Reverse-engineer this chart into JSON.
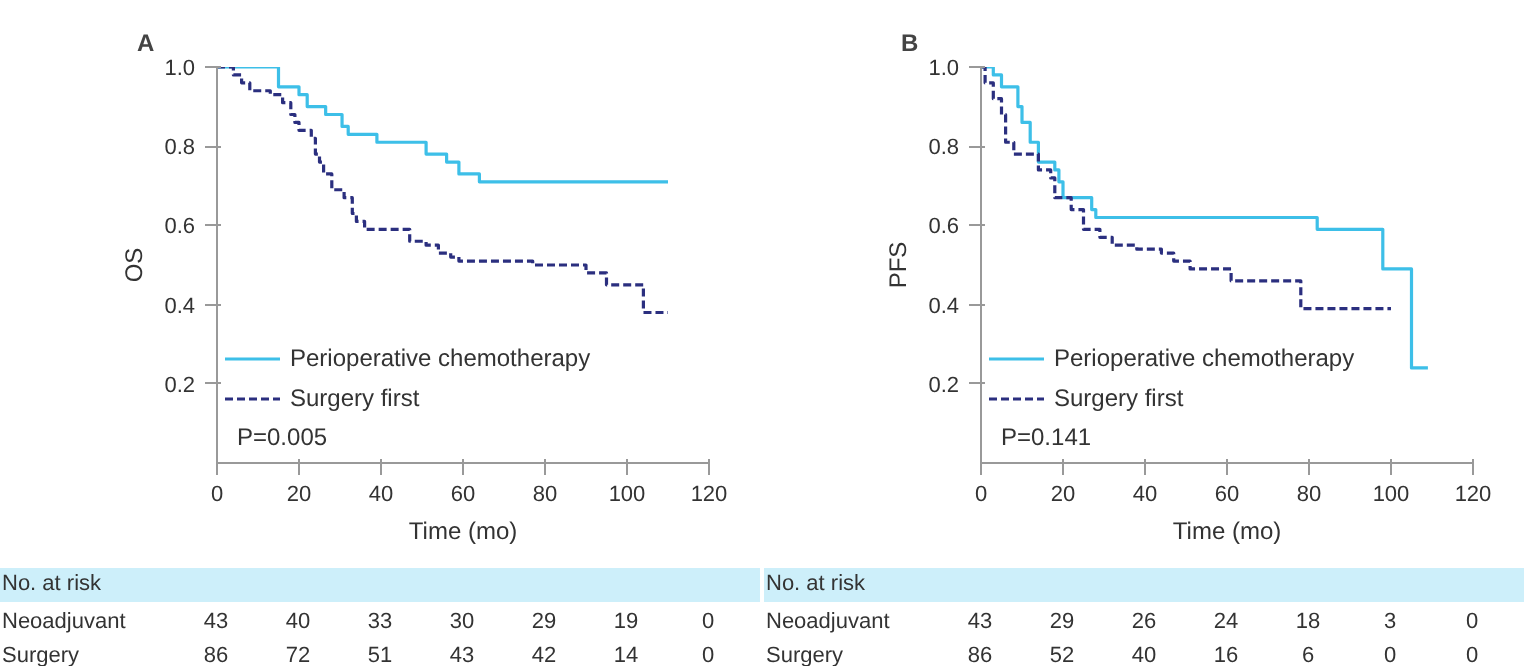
{
  "chart_data": [
    {
      "type": "step",
      "title": "A",
      "xlabel": "Time (mo)",
      "ylabel": "OS",
      "xlim": [
        0,
        120
      ],
      "ylim": [
        0,
        1.0
      ],
      "xticks": [
        0,
        20,
        40,
        60,
        80,
        100,
        120
      ],
      "yticks": [
        0.2,
        0.4,
        0.6,
        0.8,
        {
          "value": 1.0,
          "label": "1.0"
        }
      ],
      "grid": false,
      "legend": "bottom left",
      "series": [
        {
          "name": "Perioperative chemotherapy",
          "color": "#3dbfe8",
          "line_style": "solid",
          "x": [
            0,
            15,
            20,
            22,
            26.5,
            30.5,
            32,
            39,
            51,
            56,
            59,
            64,
            110
          ],
          "values": [
            1.0,
            0.95,
            0.93,
            0.9,
            0.88,
            0.85,
            0.83,
            0.81,
            0.78,
            0.76,
            0.73,
            0.71,
            0.71
          ]
        },
        {
          "name": "Surgery first",
          "color": "#2b2f7f",
          "line_style": "dashed",
          "x": [
            0,
            4,
            6,
            8,
            13,
            16,
            18,
            19,
            20,
            23,
            24,
            25,
            26,
            28,
            31,
            33,
            34,
            36,
            47,
            51,
            54,
            57,
            59,
            77,
            90,
            95,
            104,
            110
          ],
          "values": [
            1.0,
            0.98,
            0.96,
            0.94,
            0.93,
            0.91,
            0.88,
            0.86,
            0.84,
            0.82,
            0.78,
            0.76,
            0.73,
            0.69,
            0.67,
            0.63,
            0.61,
            0.59,
            0.56,
            0.55,
            0.53,
            0.52,
            0.51,
            0.5,
            0.48,
            0.45,
            0.38,
            0.38
          ]
        }
      ],
      "annotations": [
        "P=0.005",
        "No. at risk",
        "Neoadjuvant",
        "43",
        "40",
        "33",
        "30",
        "29",
        "19",
        "0",
        "Surgery",
        "86",
        "72",
        "51",
        "43",
        "42",
        "14",
        "0"
      ]
    },
    {
      "type": "step",
      "title": "B",
      "xlabel": "Time (mo)",
      "ylabel": "PFS",
      "xlim": [
        0,
        120
      ],
      "ylim": [
        0,
        1.0
      ],
      "xticks": [
        0,
        20,
        40,
        60,
        80,
        100,
        120
      ],
      "yticks": [
        0.2,
        0.4,
        0.6,
        0.8,
        {
          "value": 1.0,
          "label": "1.0"
        }
      ],
      "grid": false,
      "legend": "bottom left",
      "series": [
        {
          "name": "Perioperative chemotherapy",
          "color": "#3dbfe8",
          "line_style": "solid",
          "x": [
            0,
            3,
            5,
            9,
            10,
            12,
            14,
            18,
            19,
            20,
            27,
            28,
            82,
            98,
            105,
            109
          ],
          "values": [
            1.0,
            0.98,
            0.95,
            0.9,
            0.86,
            0.81,
            0.76,
            0.74,
            0.71,
            0.67,
            0.64,
            0.62,
            0.59,
            0.49,
            0.24,
            0.24
          ]
        },
        {
          "name": "Surgery first",
          "color": "#2b2f7f",
          "line_style": "dashed",
          "x": [
            0,
            1,
            3,
            5,
            6,
            8,
            14,
            17,
            18,
            22,
            25,
            29,
            32,
            38,
            44,
            47,
            51,
            61,
            78,
            100
          ],
          "values": [
            1.0,
            0.96,
            0.92,
            0.88,
            0.81,
            0.78,
            0.74,
            0.72,
            0.67,
            0.64,
            0.59,
            0.57,
            0.55,
            0.54,
            0.53,
            0.51,
            0.49,
            0.46,
            0.39,
            0.39
          ]
        }
      ],
      "annotations": [
        "P=0.141",
        "No. at risk",
        "Neoadjuvant",
        "43",
        "29",
        "26",
        "24",
        "18",
        "3",
        "0",
        "Surgery",
        "86",
        "52",
        "40",
        "16",
        "6",
        "0",
        "0"
      ]
    }
  ]
}
